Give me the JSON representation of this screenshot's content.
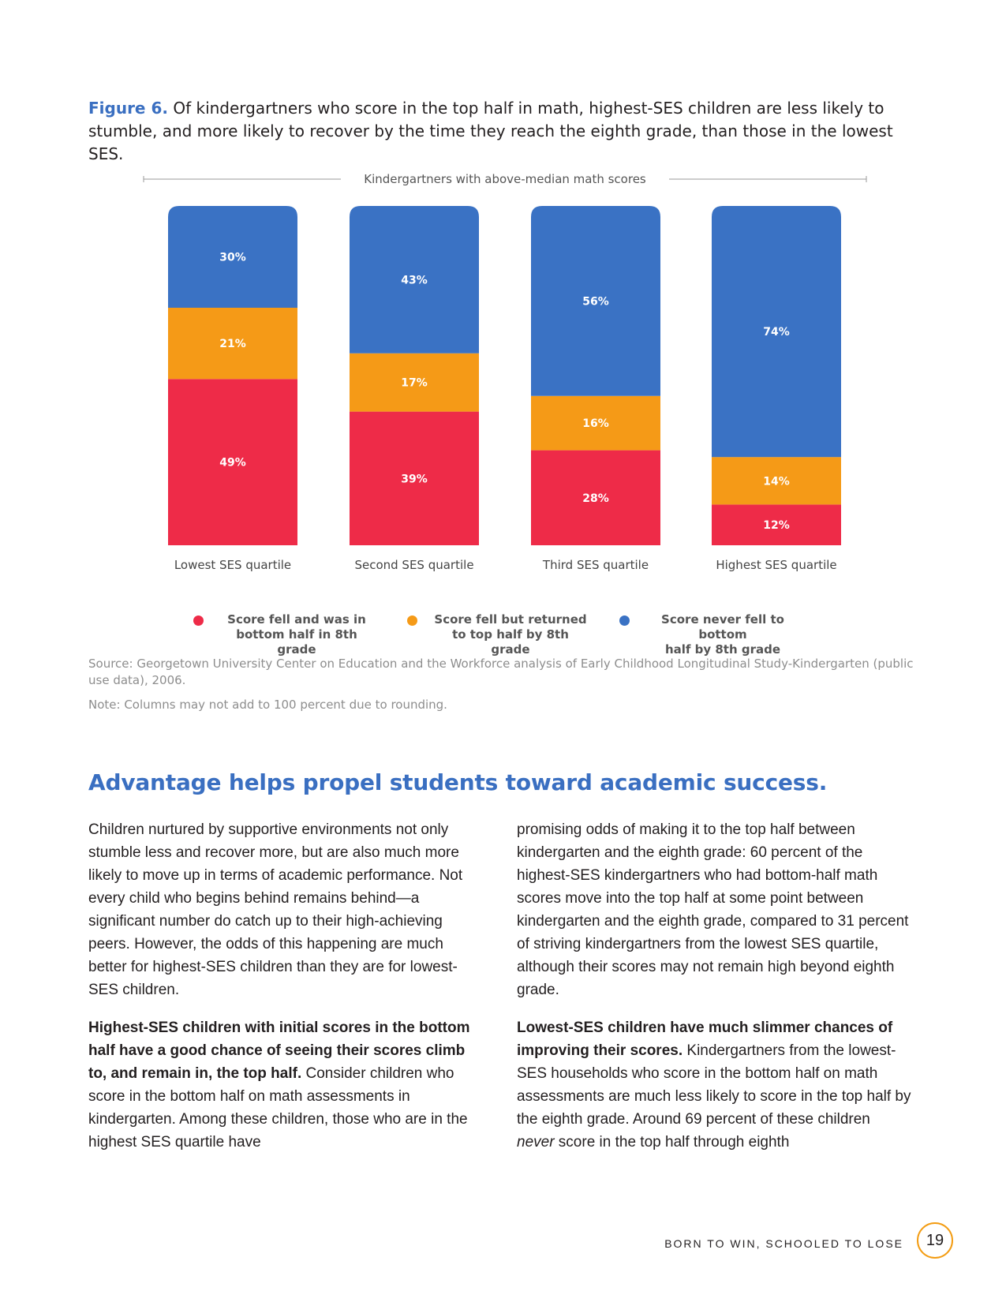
{
  "figure": {
    "number": "Figure 6.",
    "caption": "Of kindergartners who score in the top half in math, highest-SES children are less likely to stumble, and more likely to recover by the time they reach the eighth grade, than those in the lowest SES."
  },
  "colors": {
    "red": "#ee2b48",
    "orange": "#f59a17",
    "blue": "#3a72c4",
    "accent": "#3a6fc1"
  },
  "chart_data": {
    "type": "bar",
    "stacked": true,
    "title": "Kindergartners with above-median math scores",
    "categories": [
      "Lowest SES quartile",
      "Second SES quartile",
      "Third SES quartile",
      "Highest SES quartile"
    ],
    "series": [
      {
        "name": "Score fell and was in bottom half in 8th grade",
        "color": "#ee2b48",
        "values": [
          49,
          39,
          28,
          12
        ],
        "labels": [
          "49%",
          "39%",
          "28%",
          "12%"
        ]
      },
      {
        "name": "Score fell but returned to top half by 8th grade",
        "color": "#f59a17",
        "values": [
          21,
          17,
          16,
          14
        ],
        "labels": [
          "21%",
          "17%",
          "16%",
          "14%"
        ]
      },
      {
        "name": "Score never fell to bottom half by 8th grade",
        "color": "#3a72c4",
        "values": [
          30,
          43,
          56,
          74
        ],
        "labels": [
          "30%",
          "43%",
          "56%",
          "74%"
        ]
      }
    ],
    "legend_lines": [
      [
        "Score fell and was in",
        "bottom half in 8th grade"
      ],
      [
        "Score fell but returned",
        "to top half by 8th grade"
      ],
      [
        "Score never fell to bottom",
        "half by 8th grade"
      ]
    ]
  },
  "source": "Source: Georgetown University Center on Education and the Workforce analysis of Early Childhood Longitudinal Study-Kindergarten (public use data), 2006.",
  "note": "Note: Columns may not add to 100 percent due to rounding.",
  "section": {
    "heading": "Advantage helps propel students toward academic success."
  },
  "body": {
    "left_p1": "Children nurtured by supportive environments not only stumble less and recover more, but are also much more likely to move up in terms of academic performance. Not every child who begins behind remains behind—a significant number do catch up to their high-achieving peers. However, the odds of this happening are much better for highest-SES children than they are for lowest-SES children.",
    "left_p2_bold": "Highest-SES children with initial scores in the bottom half have a good chance of seeing their scores climb to, and remain in, the top half.",
    "left_p2_rest": " Consider children who score in the bottom half on math assessments in kindergarten. Among these children, those who are in the highest SES quartile have",
    "right_p1": "promising odds of making it to the top half between kindergarten and the eighth grade: 60 percent of the highest-SES kindergartners who had bottom-half math scores move into the top half at some point between kindergarten and the eighth grade, compared to 31 percent of striving kindergartners from the lowest SES quartile, although their scores may not remain high beyond eighth grade.",
    "right_p2_bold": "Lowest-SES children have much slimmer chances of improving their scores.",
    "right_p2_mid": " Kindergartners from the lowest-SES households who score in the bottom half on math assessments are much less likely to score in the top half by the eighth grade. Around 69 percent of these children ",
    "right_p2_em": "never",
    "right_p2_end": " score in the top half through eighth"
  },
  "footer": {
    "title": "BORN TO WIN, SCHOOLED TO LOSE",
    "page": "19"
  }
}
